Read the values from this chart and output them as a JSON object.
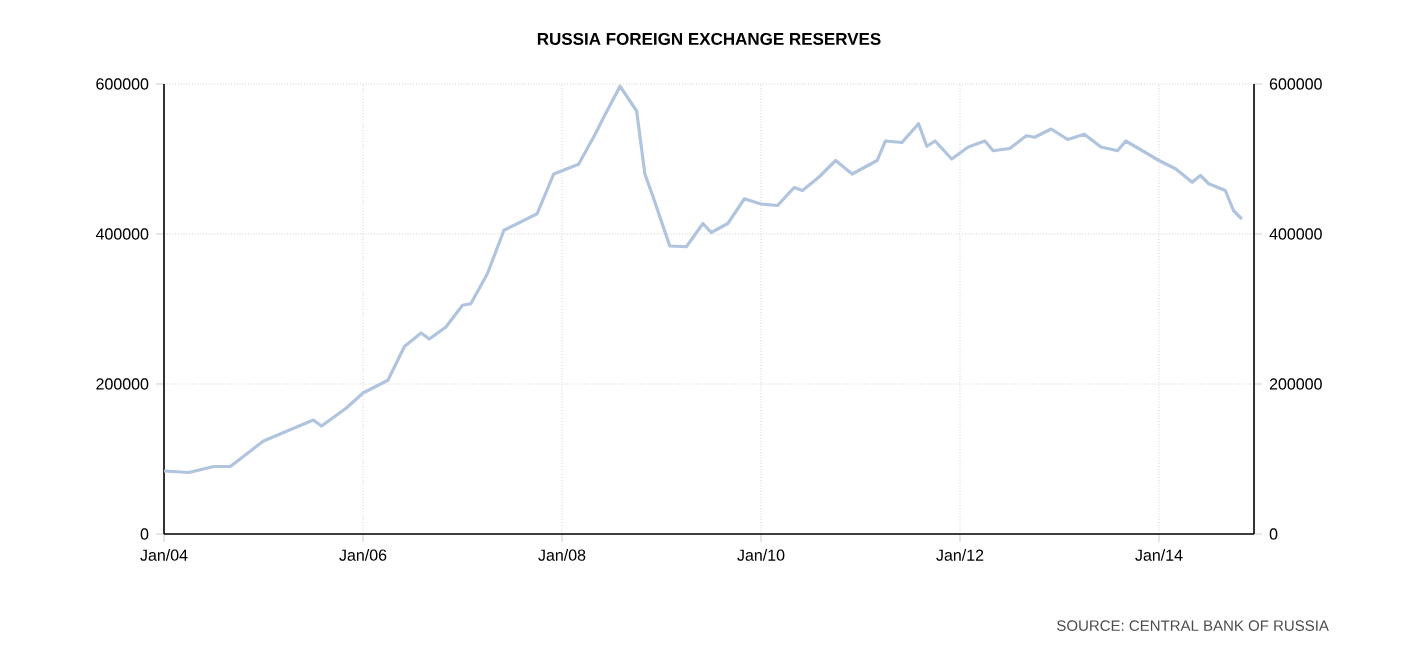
{
  "chart_data": {
    "type": "line",
    "title": "RUSSIA FOREIGN EXCHANGE RESERVES",
    "annotations": [
      "SOURCE: CENTRAL BANK OF RUSSIA"
    ],
    "x": [
      "2004-01",
      "2004-04",
      "2004-07",
      "2004-09",
      "2005-01",
      "2005-04",
      "2005-07",
      "2005-08",
      "2005-11",
      "2006-01",
      "2006-04",
      "2006-06",
      "2006-08",
      "2006-09",
      "2006-11",
      "2007-01",
      "2007-02",
      "2007-04",
      "2007-06",
      "2007-08",
      "2007-10",
      "2007-12",
      "2008-03",
      "2008-05",
      "2008-06",
      "2008-08",
      "2008-10",
      "2008-11",
      "2008-12",
      "2009-02",
      "2009-04",
      "2009-06",
      "2009-07",
      "2009-09",
      "2009-11",
      "2010-01",
      "2010-03",
      "2010-05",
      "2010-06",
      "2010-08",
      "2010-10",
      "2010-12",
      "2011-03",
      "2011-04",
      "2011-06",
      "2011-08",
      "2011-09",
      "2011-10",
      "2011-12",
      "2012-02",
      "2012-04",
      "2012-05",
      "2012-07",
      "2012-09",
      "2012-10",
      "2012-12",
      "2013-02",
      "2013-04",
      "2013-06",
      "2013-08",
      "2013-09",
      "2013-11",
      "2014-01",
      "2014-03",
      "2014-05",
      "2014-06",
      "2014-07",
      "2014-09",
      "2014-10",
      "2014-11"
    ],
    "series": [
      {
        "color": "#b0c4de",
        "values": [
          84000,
          82000,
          90000,
          90000,
          124000,
          138000,
          152000,
          144000,
          168000,
          188000,
          205000,
          250000,
          268000,
          260000,
          276000,
          305000,
          307000,
          347000,
          405000,
          416000,
          427000,
          480000,
          493000,
          533000,
          555000,
          597000,
          564000,
          480000,
          449000,
          384000,
          383000,
          414000,
          402000,
          414000,
          447000,
          440000,
          438000,
          462000,
          458000,
          476000,
          498000,
          480000,
          498000,
          524000,
          522000,
          547000,
          517000,
          524000,
          500000,
          516000,
          524000,
          511000,
          514000,
          531000,
          529000,
          540000,
          526000,
          533000,
          516000,
          511000,
          524000,
          511000,
          498000,
          487000,
          469000,
          478000,
          467000,
          458000,
          431000,
          420000
        ]
      }
    ],
    "xlim": [
      "2004-01",
      "2014-12-15"
    ],
    "xticks": [
      {
        "value": "2004-01",
        "label": "Jan/04"
      },
      {
        "value": "2006-01",
        "label": "Jan/06"
      },
      {
        "value": "2008-01",
        "label": "Jan/08"
      },
      {
        "value": "2010-01",
        "label": "Jan/10"
      },
      {
        "value": "2012-01",
        "label": "Jan/12"
      },
      {
        "value": "2014-01",
        "label": "Jan/14"
      }
    ],
    "ylim": [
      0,
      600000
    ],
    "yticks": [
      0,
      200000,
      400000,
      600000
    ],
    "y2lim": [
      0,
      600000
    ],
    "y2ticks": [
      0,
      200000,
      400000,
      600000
    ],
    "grid": true,
    "marker": "none",
    "line_style": "solid"
  }
}
